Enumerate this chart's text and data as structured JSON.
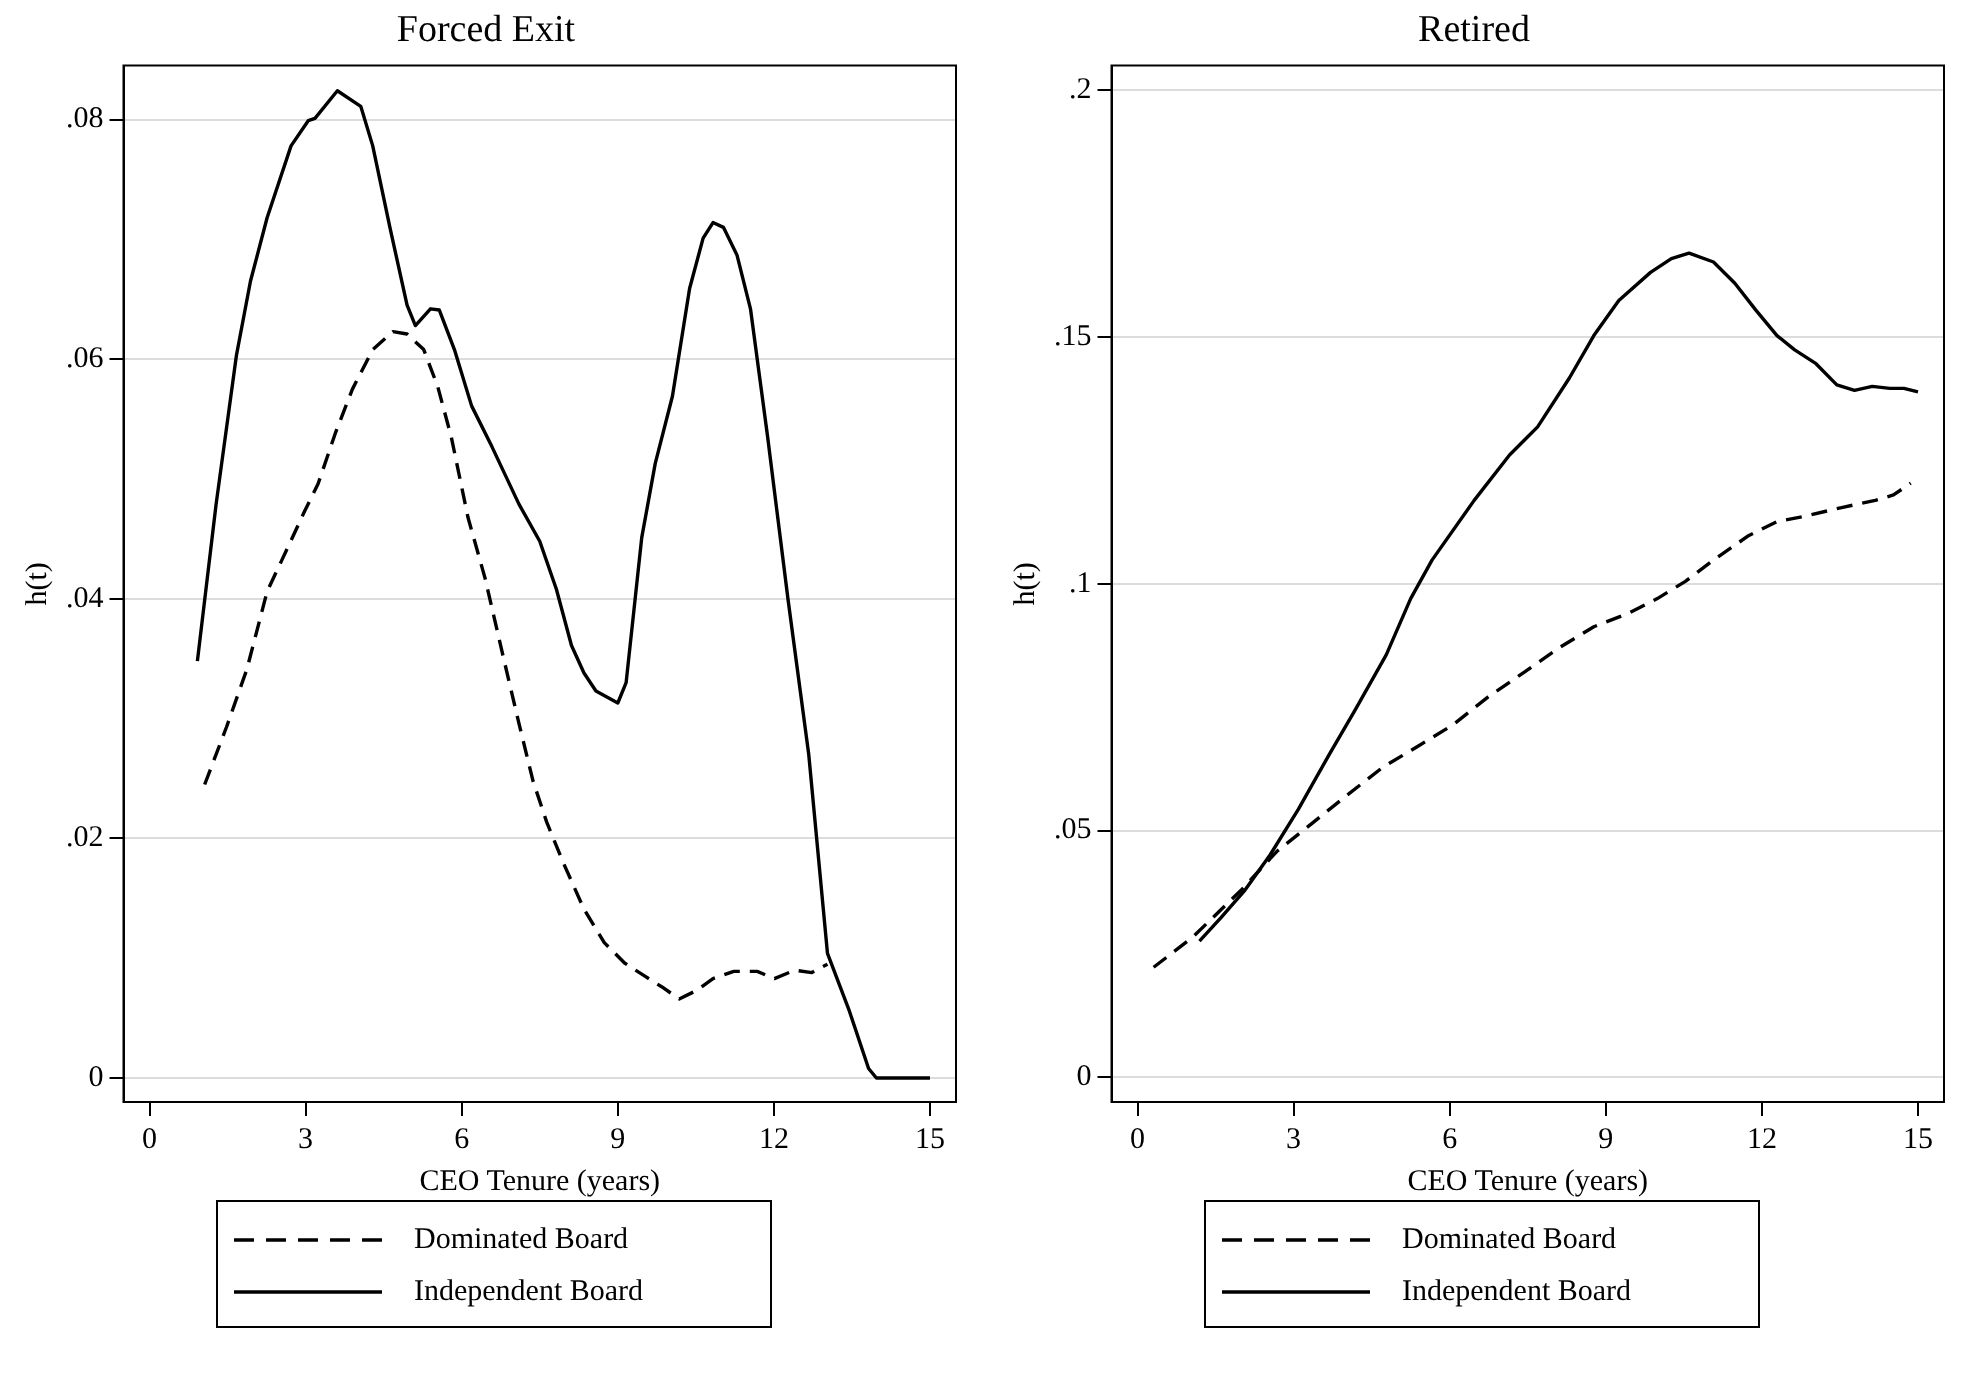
{
  "chart_data": [
    {
      "type": "line",
      "title": "Forced Exit",
      "xlabel": "CEO Tenure (years)",
      "ylabel": "h(t)",
      "xlim": [
        -0.5,
        15.5
      ],
      "ylim": [
        -0.002,
        0.0845
      ],
      "xticks": [
        0,
        3,
        6,
        9,
        12,
        15
      ],
      "yticks": [
        0,
        {
          "value": 0.02,
          "label": ".02"
        },
        {
          "value": 0.04,
          "label": ".04"
        },
        {
          "value": 0.06,
          "label": ".06"
        },
        {
          "value": 0.08,
          "label": ".08"
        }
      ],
      "grid": "y",
      "legend": "bottom",
      "series": [
        {
          "name": "Dominated Board",
          "color": "#000000",
          "line_style": "dashed",
          "x": [
            1.06,
            1.48,
            1.87,
            2.26,
            2.53,
            2.98,
            3.24,
            3.57,
            3.9,
            4.29,
            4.68,
            4.95,
            5.27,
            5.54,
            5.8,
            6.12,
            6.45,
            6.78,
            7.1,
            7.37,
            7.63,
            7.95,
            8.35,
            8.74,
            9.13,
            9.52,
            9.85,
            10.18,
            10.51,
            10.83,
            11.23,
            11.68,
            12.01,
            12.4,
            12.73,
            13.03
          ],
          "values": [
            0.0245,
            0.0293,
            0.0341,
            0.0406,
            0.0431,
            0.0473,
            0.0496,
            0.0538,
            0.0575,
            0.0608,
            0.0623,
            0.0621,
            0.0608,
            0.0577,
            0.0535,
            0.0468,
            0.0417,
            0.0355,
            0.0296,
            0.0248,
            0.0214,
            0.018,
            0.0141,
            0.0113,
            0.0096,
            0.0085,
            0.0076,
            0.0066,
            0.0073,
            0.0083,
            0.0089,
            0.0089,
            0.0083,
            0.009,
            0.0088,
            0.0095
          ]
        },
        {
          "name": "Independent Board",
          "color": "#000000",
          "line_style": "solid",
          "x": [
            0.92,
            1.28,
            1.67,
            1.94,
            2.26,
            2.72,
            3.05,
            3.18,
            3.61,
            4.06,
            4.29,
            4.62,
            4.95,
            5.11,
            5.4,
            5.57,
            5.86,
            6.19,
            6.58,
            7.1,
            7.5,
            7.82,
            8.11,
            8.35,
            8.58,
            9.0,
            9.16,
            9.46,
            9.72,
            10.05,
            10.38,
            10.64,
            10.83,
            11.03,
            11.29,
            11.55,
            11.88,
            12.27,
            12.67,
            13.03,
            13.45,
            13.82,
            13.97,
            15.0
          ],
          "values": [
            0.0348,
            0.0479,
            0.0603,
            0.0665,
            0.0718,
            0.0778,
            0.0799,
            0.0801,
            0.0824,
            0.0811,
            0.0778,
            0.071,
            0.0645,
            0.0628,
            0.0642,
            0.0641,
            0.0608,
            0.0561,
            0.0527,
            0.0479,
            0.0448,
            0.0408,
            0.0361,
            0.0338,
            0.0323,
            0.0313,
            0.033,
            0.0451,
            0.0513,
            0.0569,
            0.0659,
            0.0701,
            0.0714,
            0.071,
            0.0687,
            0.0642,
            0.0535,
            0.04,
            0.027,
            0.0104,
            0.0056,
            0.0008,
            0,
            0
          ]
        }
      ]
    },
    {
      "type": "line",
      "title": "Retired",
      "xlabel": "CEO Tenure (years)",
      "ylabel": "h(t)",
      "xlim": [
        -0.5,
        15.5
      ],
      "ylim": [
        -0.005,
        0.205
      ],
      "xticks": [
        0,
        3,
        6,
        9,
        12,
        15
      ],
      "yticks": [
        0,
        {
          "value": 0.05,
          "label": ".05"
        },
        {
          "value": 0.1,
          "label": ".1"
        },
        {
          "value": 0.15,
          "label": ".15"
        },
        {
          "value": 0.2,
          "label": ".2"
        }
      ],
      "grid": "y",
      "legend": "bottom",
      "series": [
        {
          "name": "Dominated Board",
          "color": "#000000",
          "line_style": "dashed",
          "x": [
            0.31,
            1.06,
            2.0,
            2.68,
            3.36,
            4.03,
            4.71,
            5.39,
            6.06,
            6.74,
            7.42,
            8.1,
            8.77,
            9.45,
            9.99,
            10.53,
            11.07,
            11.75,
            12.29,
            12.83,
            13.51,
            14.18,
            14.53,
            14.86
          ],
          "values": [
            0.0223,
            0.0284,
            0.038,
            0.0458,
            0.0515,
            0.0572,
            0.0628,
            0.0671,
            0.0714,
            0.0771,
            0.082,
            0.087,
            0.0913,
            0.0941,
            0.097,
            0.1005,
            0.1048,
            0.1098,
            0.1126,
            0.1137,
            0.1154,
            0.1169,
            0.118,
            0.1204
          ]
        },
        {
          "name": "Independent Board",
          "color": "#000000",
          "line_style": "solid",
          "x": [
            1.19,
            1.6,
            2.07,
            2.55,
            3.09,
            3.7,
            4.17,
            4.78,
            5.25,
            5.66,
            6.47,
            7.15,
            7.69,
            8.3,
            8.77,
            9.25,
            9.86,
            10.26,
            10.6,
            11.07,
            11.48,
            11.88,
            12.29,
            12.63,
            13.04,
            13.44,
            13.78,
            14.12,
            14.46,
            14.73,
            15.0
          ],
          "values": [
            0.0276,
            0.0323,
            0.038,
            0.0451,
            0.0543,
            0.0657,
            0.0742,
            0.0856,
            0.097,
            0.1048,
            0.1169,
            0.1261,
            0.1318,
            0.1417,
            0.1503,
            0.1574,
            0.1631,
            0.1659,
            0.167,
            0.1652,
            0.1609,
            0.1555,
            0.1503,
            0.1474,
            0.1446,
            0.1403,
            0.1392,
            0.14,
            0.1396,
            0.1396,
            0.1389
          ]
        }
      ]
    }
  ]
}
